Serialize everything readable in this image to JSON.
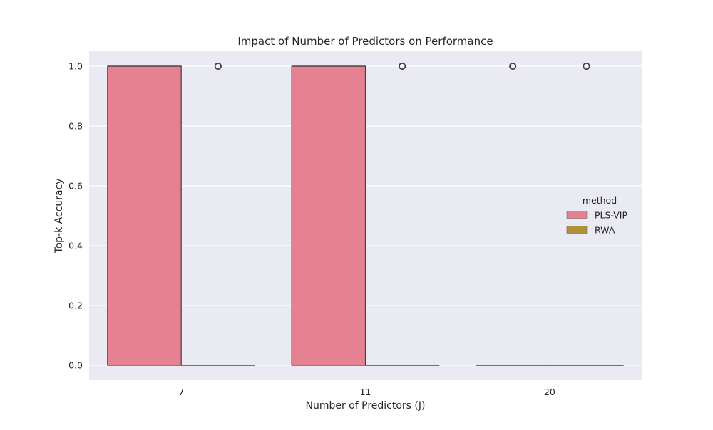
{
  "chart_data": {
    "type": "box",
    "title": "Impact of Number of Predictors on Performance",
    "xlabel": "Number of Predictors (J)",
    "ylabel": "Top-k Accuracy",
    "categories": [
      "7",
      "11",
      "20"
    ],
    "ylim": [
      -0.05,
      1.05
    ],
    "yticks": [
      0.0,
      0.2,
      0.4,
      0.6,
      0.8,
      1.0
    ],
    "ytick_labels": [
      "0.0",
      "0.2",
      "0.4",
      "0.6",
      "0.8",
      "1.0"
    ],
    "grid": true,
    "legend": {
      "title": "method",
      "placement": "right",
      "entries": [
        "PLS-VIP",
        "RWA"
      ]
    },
    "series": [
      {
        "name": "PLS-VIP",
        "color": "#e58191",
        "boxes": [
          {
            "category": "7",
            "q1": 0.0,
            "median": 1.0,
            "q3": 1.0,
            "whisker_low": 0.0,
            "whisker_high": 1.0,
            "outliers": []
          },
          {
            "category": "11",
            "q1": 0.0,
            "median": 1.0,
            "q3": 1.0,
            "whisker_low": 0.0,
            "whisker_high": 1.0,
            "outliers": []
          },
          {
            "category": "20",
            "q1": 0.0,
            "median": 0.0,
            "q3": 0.0,
            "whisker_low": 0.0,
            "whisker_high": 0.0,
            "outliers": [
              1.0
            ]
          }
        ]
      },
      {
        "name": "RWA",
        "color": "#b0913a",
        "boxes": [
          {
            "category": "7",
            "q1": 0.0,
            "median": 0.0,
            "q3": 0.0,
            "whisker_low": 0.0,
            "whisker_high": 0.0,
            "outliers": [
              1.0
            ]
          },
          {
            "category": "11",
            "q1": 0.0,
            "median": 0.0,
            "q3": 0.0,
            "whisker_low": 0.0,
            "whisker_high": 0.0,
            "outliers": [
              1.0
            ]
          },
          {
            "category": "20",
            "q1": 0.0,
            "median": 0.0,
            "q3": 0.0,
            "whisker_low": 0.0,
            "whisker_high": 0.0,
            "outliers": [
              1.0
            ]
          }
        ]
      }
    ]
  }
}
